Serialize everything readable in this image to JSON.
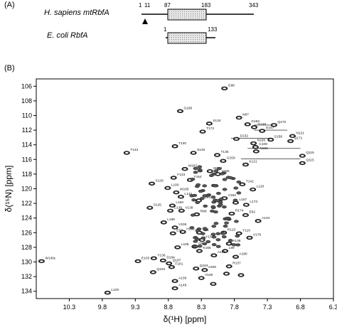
{
  "panel_a": {
    "label": "(A)",
    "human": {
      "name": "H. sapiens mtRbfA",
      "n1": "1",
      "n11": "11",
      "n87": "87",
      "n183": "183",
      "n343": "343"
    },
    "ecoli": {
      "name": "E. coli RbfA",
      "n1": "1",
      "n133": "133"
    }
  },
  "panel_b": {
    "label": "(B)"
  },
  "chart_data": {
    "type": "scatter",
    "title": "",
    "xlabel": "δ(¹H) [ppm]",
    "ylabel": "δ(¹⁵N) [ppm]",
    "xlim": [
      10.8,
      6.3
    ],
    "ylim": [
      135,
      105
    ],
    "x_ticks": [
      "10.3",
      "9.8",
      "9.3",
      "8.8",
      "8.3",
      "7.8",
      "7.3",
      "6.8",
      "6.3"
    ],
    "y_ticks": [
      "106",
      "108",
      "110",
      "112",
      "114",
      "116",
      "118",
      "120",
      "122",
      "124",
      "126",
      "128",
      "130",
      "132",
      "134"
    ],
    "peaks": [
      {
        "x": 7.95,
        "y": 106.3,
        "label": "G98"
      },
      {
        "x": 8.62,
        "y": 109.4,
        "label": "G186"
      },
      {
        "x": 7.73,
        "y": 110.3,
        "label": "N87"
      },
      {
        "x": 7.6,
        "y": 111.2,
        "label": "G163"
      },
      {
        "x": 7.5,
        "y": 111.6,
        "label": "G146"
      },
      {
        "x": 7.38,
        "y": 112.1,
        "label": "G157"
      },
      {
        "x": 7.2,
        "y": 111.3,
        "label": "Q170"
      },
      {
        "x": 6.92,
        "y": 112.8,
        "label": "N121"
      },
      {
        "x": 6.95,
        "y": 113.5,
        "label": "Q171"
      },
      {
        "x": 8.18,
        "y": 111.1,
        "label": "S134"
      },
      {
        "x": 8.28,
        "y": 112.2,
        "label": "T172"
      },
      {
        "x": 7.77,
        "y": 113.2,
        "label": "D132"
      },
      {
        "x": 7.51,
        "y": 113.8,
        "label": "N169"
      },
      {
        "x": 7.25,
        "y": 113.3,
        "label": "S158"
      },
      {
        "x": 7.48,
        "y": 114.3,
        "label": "C108"
      },
      {
        "x": 7.47,
        "y": 114.9,
        "label": "N169"
      },
      {
        "x": 8.7,
        "y": 114.2,
        "label": "T130"
      },
      {
        "x": 8.42,
        "y": 115.1,
        "label": "S145"
      },
      {
        "x": 8.06,
        "y": 115.4,
        "label": "T135"
      },
      {
        "x": 7.97,
        "y": 116.2,
        "label": "G159"
      },
      {
        "x": 7.63,
        "y": 116.7,
        "label": "K121"
      },
      {
        "x": 6.77,
        "y": 116.5,
        "label": "Q115"
      },
      {
        "x": 6.77,
        "y": 115.5,
        "label": "Q115"
      },
      {
        "x": 9.43,
        "y": 115.1,
        "label": "T143"
      },
      {
        "x": 8.55,
        "y": 117.3,
        "label": "M163"
      },
      {
        "x": 8.17,
        "y": 117.6,
        "label": "M158"
      },
      {
        "x": 8.05,
        "y": 118.0,
        "label": "V155"
      },
      {
        "x": 8.72,
        "y": 118.5,
        "label": "F133"
      },
      {
        "x": 8.47,
        "y": 118.8,
        "label": "Y164"
      },
      {
        "x": 7.68,
        "y": 119.4,
        "label": "T142"
      },
      {
        "x": 7.52,
        "y": 120.1,
        "label": "L120"
      },
      {
        "x": 9.05,
        "y": 119.3,
        "label": "S129"
      },
      {
        "x": 8.81,
        "y": 119.9,
        "label": "L100"
      },
      {
        "x": 8.68,
        "y": 120.5,
        "label": "W185"
      },
      {
        "x": 8.61,
        "y": 121.1,
        "label": "L144"
      },
      {
        "x": 8.34,
        "y": 121.6,
        "label": "Q161"
      },
      {
        "x": 7.95,
        "y": 121.3,
        "label": "V184"
      },
      {
        "x": 7.78,
        "y": 121.9,
        "label": "L157"
      },
      {
        "x": 7.62,
        "y": 122.2,
        "label": "L173"
      },
      {
        "x": 9.08,
        "y": 122.6,
        "label": "S125"
      },
      {
        "x": 8.74,
        "y": 122.3,
        "label": "L150"
      },
      {
        "x": 8.77,
        "y": 123.0,
        "label": "C136"
      },
      {
        "x": 8.6,
        "y": 123.0,
        "label": "V138"
      },
      {
        "x": 8.37,
        "y": 123.5,
        "label": "R96"
      },
      {
        "x": 7.84,
        "y": 123.4,
        "label": "R174"
      },
      {
        "x": 7.63,
        "y": 123.6,
        "label": "E92"
      },
      {
        "x": 7.44,
        "y": 124.4,
        "label": "A104"
      },
      {
        "x": 8.87,
        "y": 124.6,
        "label": "L188"
      },
      {
        "x": 8.7,
        "y": 125.3,
        "label": "V106"
      },
      {
        "x": 8.73,
        "y": 126.1,
        "label": "E87"
      },
      {
        "x": 8.58,
        "y": 125.9,
        "label": "H162"
      },
      {
        "x": 8.33,
        "y": 126.0,
        "label": "V91"
      },
      {
        "x": 7.96,
        "y": 126.0,
        "label": "R123"
      },
      {
        "x": 7.73,
        "y": 126.1,
        "label": "Y110"
      },
      {
        "x": 7.57,
        "y": 126.7,
        "label": "V176"
      },
      {
        "x": 8.29,
        "y": 127.0,
        "label": "Y154"
      },
      {
        "x": 7.88,
        "y": 127.5,
        "label": "A138"
      },
      {
        "x": 8.66,
        "y": 128.0,
        "label": "L106"
      },
      {
        "x": 8.4,
        "y": 127.9,
        "label": "I161"
      },
      {
        "x": 8.33,
        "y": 128.5,
        "label": "K186"
      },
      {
        "x": 7.94,
        "y": 128.5,
        "label": "L89"
      },
      {
        "x": 8.11,
        "y": 129.1,
        "label": "A186"
      },
      {
        "x": 7.78,
        "y": 129.3,
        "label": "A180"
      },
      {
        "x": 9.02,
        "y": 129.5,
        "label": "Y136"
      },
      {
        "x": 8.88,
        "y": 129.8,
        "label": "D184"
      },
      {
        "x": 8.79,
        "y": 130.2,
        "label": "Q187"
      },
      {
        "x": 8.75,
        "y": 130.7,
        "label": "F181"
      },
      {
        "x": 10.72,
        "y": 129.9,
        "label": "W140ε"
      },
      {
        "x": 9.26,
        "y": 129.9,
        "label": "E103"
      },
      {
        "x": 9.03,
        "y": 131.4,
        "label": "Q103"
      },
      {
        "x": 8.38,
        "y": 130.9,
        "label": "Q183"
      },
      {
        "x": 8.25,
        "y": 131.1,
        "label": "A200"
      },
      {
        "x": 7.88,
        "y": 130.6,
        "label": "R137"
      },
      {
        "x": 8.3,
        "y": 132.2,
        "label": "V180"
      },
      {
        "x": 8.7,
        "y": 132.6,
        "label": "A136"
      },
      {
        "x": 9.72,
        "y": 134.2,
        "label": "L129"
      },
      {
        "x": 8.7,
        "y": 133.6,
        "label": "A148"
      },
      {
        "x": 7.92,
        "y": 131.6,
        "label": ""
      },
      {
        "x": 7.7,
        "y": 131.8,
        "label": ""
      },
      {
        "x": 8.12,
        "y": 133.0,
        "label": ""
      }
    ]
  }
}
